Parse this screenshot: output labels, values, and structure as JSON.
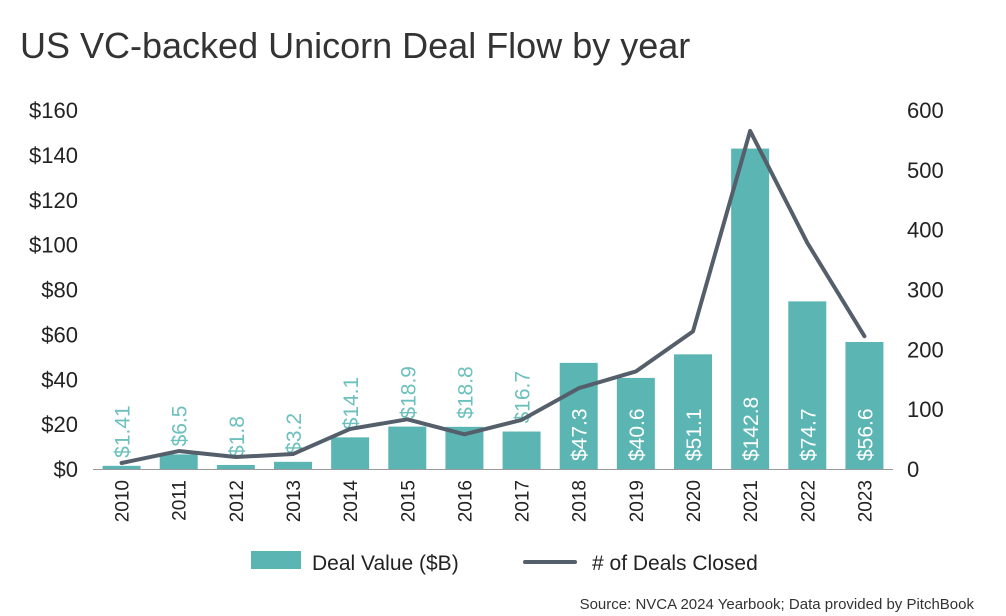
{
  "chart_data": {
    "type": "bar",
    "title": "US VC-backed Unicorn Deal Flow by year",
    "source": "Source: NVCA 2024 Yearbook; Data provided by PitchBook",
    "categories": [
      "2010",
      "2011",
      "2012",
      "2013",
      "2014",
      "2015",
      "2016",
      "2017",
      "2018",
      "2019",
      "2020",
      "2021",
      "2022",
      "2023"
    ],
    "series": [
      {
        "name": "Deal Value ($B)",
        "type": "bar",
        "axis": "left",
        "color": "#5bb5b3",
        "values": [
          1.41,
          6.5,
          1.8,
          3.2,
          14.1,
          18.9,
          18.8,
          16.7,
          47.3,
          40.6,
          51.1,
          142.8,
          74.7,
          56.6
        ],
        "labels": [
          "$1.41",
          "$6.5",
          "$1.8",
          "$3.2",
          "$14.1",
          "$18.9",
          "$18.8",
          "$16.7",
          "$47.3",
          "$40.6",
          "$51.1",
          "$142.8",
          "$74.7",
          "$56.6"
        ]
      },
      {
        "name": "# of Deals Closed",
        "type": "line",
        "axis": "right",
        "color": "#555f6b",
        "values": [
          10,
          30,
          20,
          25,
          67,
          83,
          58,
          82,
          135,
          163,
          230,
          565,
          378,
          222
        ]
      }
    ],
    "y_left": {
      "lim": [
        0,
        160
      ],
      "ticks": [
        0,
        20,
        40,
        60,
        80,
        100,
        120,
        140,
        160
      ],
      "tick_labels": [
        "$0",
        "$20",
        "$40",
        "$60",
        "$80",
        "$100",
        "$120",
        "$140",
        "$160"
      ]
    },
    "y_right": {
      "lim": [
        0,
        600
      ],
      "ticks": [
        0,
        100,
        200,
        300,
        400,
        500,
        600
      ],
      "tick_labels": [
        "0",
        "100",
        "200",
        "300",
        "400",
        "500",
        "600"
      ]
    },
    "grid": false,
    "legend": "bottom",
    "label_colors": {
      "outside": "#6cc0bd",
      "inside": "#ffffff"
    }
  }
}
